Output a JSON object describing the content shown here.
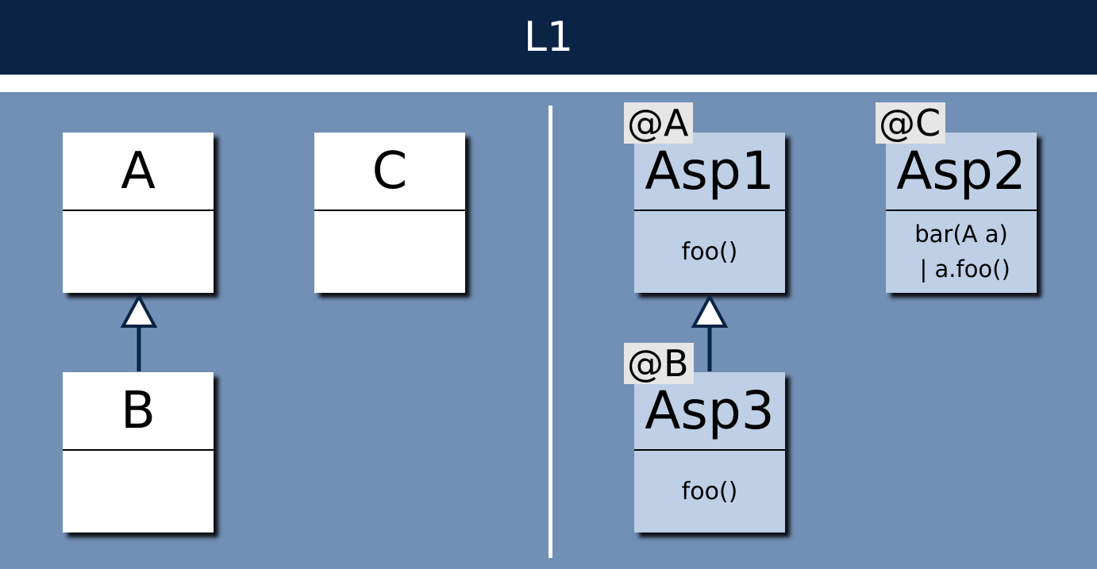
{
  "title": "L1",
  "colors": {
    "title_bar": "#0b2445",
    "panel": "#728fb5",
    "class_fill": "#ffffff",
    "aspect_fill": "#becfe6",
    "annotation_fill": "#e6e6e6",
    "arrow": "#0b2445"
  },
  "left": {
    "classes": {
      "a": {
        "name": "A",
        "members": []
      },
      "b": {
        "name": "B",
        "members": []
      },
      "c": {
        "name": "C",
        "members": []
      }
    }
  },
  "right": {
    "aspects": {
      "asp1": {
        "annotation": "@A",
        "name": "Asp1",
        "members": [
          "foo()"
        ]
      },
      "asp2": {
        "annotation": "@C",
        "name": "Asp2",
        "members": [
          "bar(A a)",
          " | a.foo()"
        ]
      },
      "asp3": {
        "annotation": "@B",
        "name": "Asp3",
        "members": [
          "foo()"
        ]
      }
    }
  },
  "relations": [
    {
      "type": "inheritance",
      "from": "B",
      "to": "A"
    },
    {
      "type": "inheritance",
      "from": "Asp3",
      "to": "Asp1"
    }
  ]
}
